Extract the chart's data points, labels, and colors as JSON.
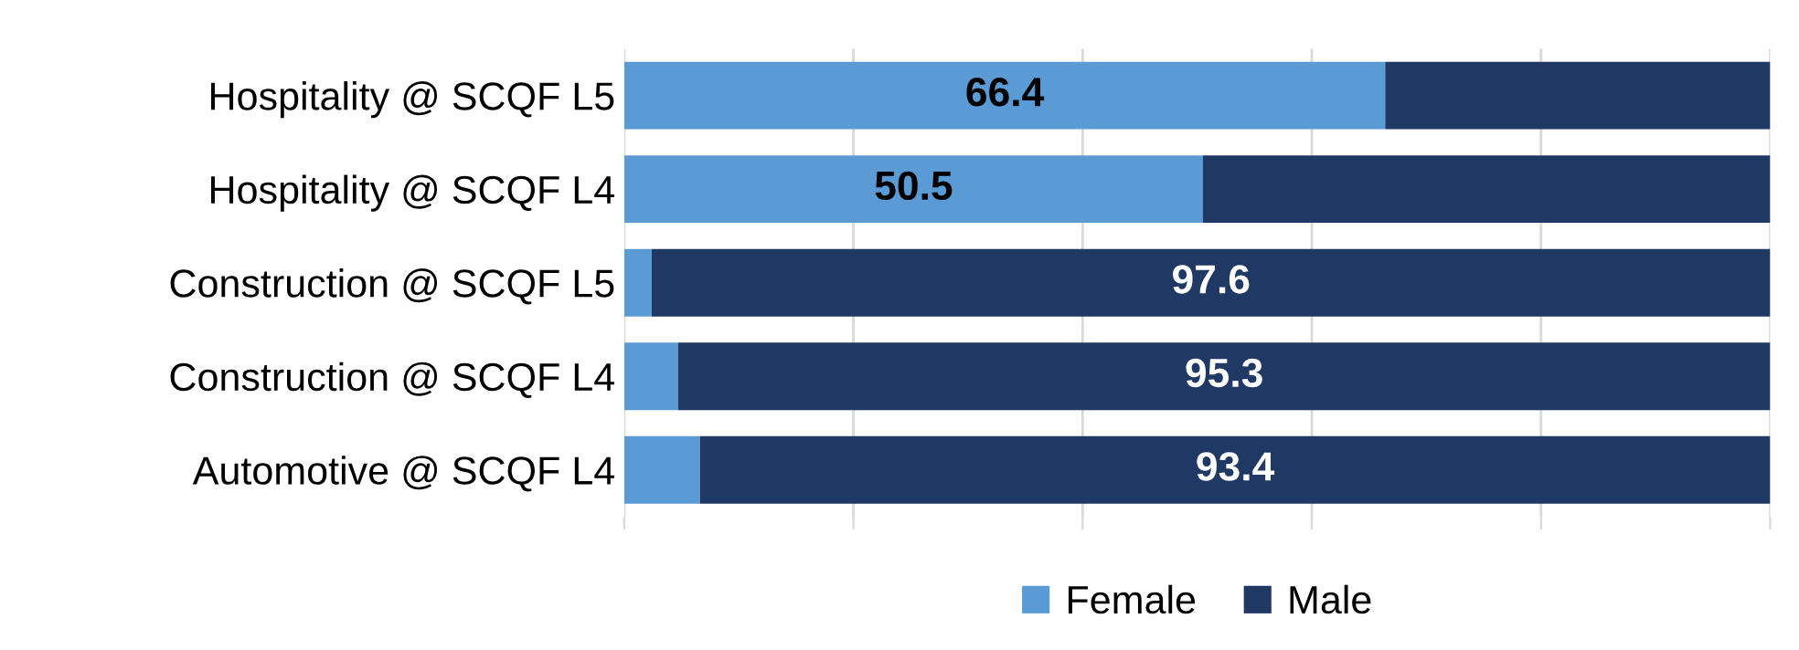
{
  "chart_data": {
    "type": "bar",
    "orientation": "horizontal",
    "stacked": true,
    "categories": [
      "Hospitality @ SCQF L5",
      "Hospitality @ SCQF L4",
      "Construction @ SCQF L5",
      "Construction @ SCQF L4",
      "Automotive @ SCQF L4"
    ],
    "series": [
      {
        "name": "Female",
        "color": "#5b9bd5",
        "values": [
          66.4,
          50.5,
          2.4,
          4.7,
          6.6
        ],
        "value_labels": [
          "66.4",
          "50.5",
          null,
          null,
          null
        ]
      },
      {
        "name": "Male",
        "color": "#203864",
        "values": [
          33.6,
          49.5,
          97.6,
          95.3,
          93.4
        ],
        "value_labels": [
          null,
          null,
          "97.6",
          "95.3",
          "93.4"
        ]
      }
    ],
    "xlim": [
      0,
      100
    ],
    "xticks": [
      {
        "value": 0,
        "label": null
      },
      {
        "value": 20,
        "label": null
      },
      {
        "value": 40,
        "label": null
      },
      {
        "value": 60,
        "label": null
      },
      {
        "value": 80,
        "label": null
      },
      {
        "value": 100,
        "label": null
      }
    ],
    "grid": "x",
    "legend": "bottom",
    "tick_labels": "y"
  }
}
